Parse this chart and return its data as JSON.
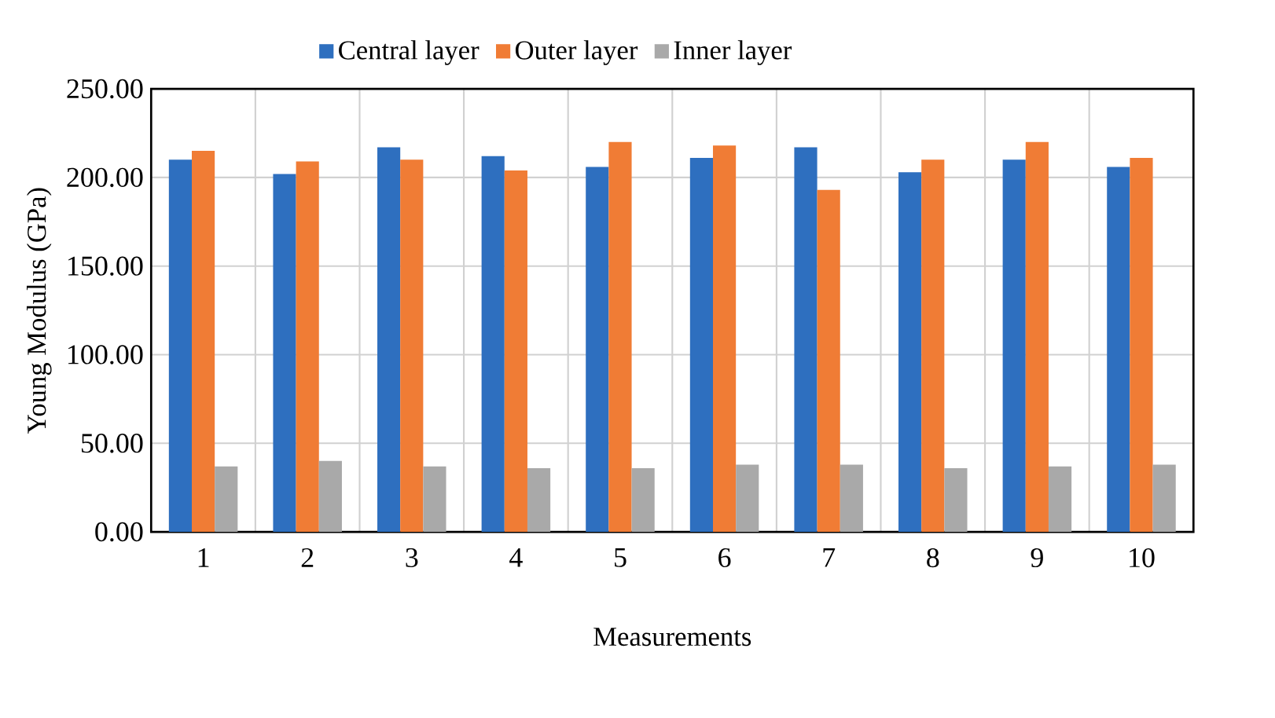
{
  "chart_data": {
    "type": "bar",
    "xlabel": "Measurements",
    "ylabel": "Young Modulus (GPa)",
    "categories": [
      "1",
      "2",
      "3",
      "4",
      "5",
      "6",
      "7",
      "8",
      "9",
      "10"
    ],
    "series": [
      {
        "name": "Central layer",
        "color": "#2e6fbf",
        "values": [
          210,
          202,
          217,
          212,
          206,
          211,
          217,
          203,
          210,
          206
        ]
      },
      {
        "name": "Outer layer",
        "color": "#f07c35",
        "values": [
          215,
          209,
          210,
          204,
          220,
          218,
          193,
          210,
          220,
          211
        ]
      },
      {
        "name": "Inner layer",
        "color": "#a9a9a9",
        "values": [
          37,
          40,
          37,
          36,
          36,
          38,
          38,
          36,
          37,
          38
        ]
      }
    ],
    "ylim": [
      0,
      250
    ],
    "yticks": [
      {
        "value": 0,
        "label": "0.00"
      },
      {
        "value": 50,
        "label": "50.00"
      },
      {
        "value": 100,
        "label": "100.00"
      },
      {
        "value": 150,
        "label": "150.00"
      },
      {
        "value": 200,
        "label": "200.00"
      },
      {
        "value": 250,
        "label": "250.00"
      }
    ],
    "grid": true,
    "legend": "top"
  }
}
